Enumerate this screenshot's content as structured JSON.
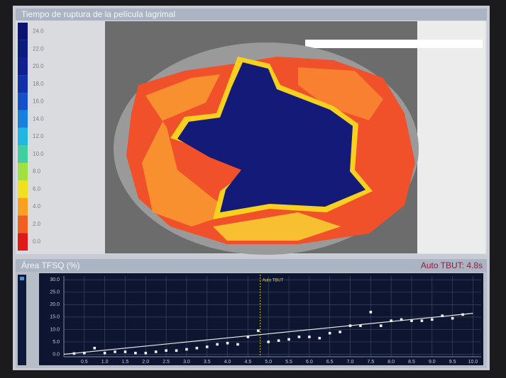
{
  "header": {
    "title": "Tiempo de ruptura de la película lagrimal"
  },
  "legend": [
    {
      "label": "24.0",
      "color": "#0b1470"
    },
    {
      "label": "22.0",
      "color": "#0d1a80"
    },
    {
      "label": "20.0",
      "color": "#102090"
    },
    {
      "label": "18.0",
      "color": "#1230a8"
    },
    {
      "label": "16.0",
      "color": "#1650c8"
    },
    {
      "label": "14.0",
      "color": "#1a80e0"
    },
    {
      "label": "12.0",
      "color": "#20b8e0"
    },
    {
      "label": "10.0",
      "color": "#40d0a0"
    },
    {
      "label": "8.0",
      "color": "#a0e040"
    },
    {
      "label": "6.0",
      "color": "#f0e020"
    },
    {
      "label": "4.0",
      "color": "#f8a020"
    },
    {
      "label": "2.0",
      "color": "#f06020"
    },
    {
      "label": "0.0",
      "color": "#e01818"
    }
  ],
  "chart_data": {
    "type": "scatter",
    "title": "Área TFSQ (%)",
    "subtitle": "Auto TBUT: 4.8s",
    "annotation": {
      "text": "Auto TBUT",
      "x": 4.8
    },
    "xlim": [
      0,
      10.2
    ],
    "ylim": [
      -1,
      31.5
    ],
    "xticks": [
      0.5,
      {
        "value": 1,
        "label": "1.0"
      },
      1.5,
      {
        "value": 2,
        "label": "2.0"
      },
      2.5,
      {
        "value": 3,
        "label": "3.0"
      },
      3.5,
      {
        "value": 4,
        "label": "4.0"
      },
      4.5,
      {
        "value": 5,
        "label": "5.0"
      },
      5.5,
      {
        "value": 6,
        "label": "6.0"
      },
      6.5,
      {
        "value": 7,
        "label": "7.0"
      },
      7.5,
      {
        "value": 8,
        "label": "8.0"
      },
      8.5,
      {
        "value": 9,
        "label": "9.0"
      },
      9.5,
      {
        "value": 10,
        "label": "10.0"
      }
    ],
    "yticks": [
      {
        "value": 0,
        "label": "0.0"
      },
      {
        "value": 5,
        "label": "5.0"
      },
      {
        "value": 10,
        "label": "10.0"
      },
      {
        "value": 15,
        "label": "15.0"
      },
      {
        "value": 20,
        "label": "20.0"
      },
      {
        "value": 25,
        "label": "25.0"
      },
      {
        "value": 30,
        "label": "30.0"
      }
    ],
    "grid": true,
    "x": [
      0.25,
      0.5,
      0.75,
      1,
      1.25,
      1.5,
      1.75,
      2,
      2.25,
      2.5,
      2.75,
      3,
      3.25,
      3.5,
      3.75,
      4,
      4.25,
      4.5,
      4.75,
      5,
      5.25,
      5.5,
      5.75,
      6,
      6.25,
      6.5,
      6.75,
      7,
      7.25,
      7.5,
      7.75,
      8,
      8.25,
      8.5,
      8.75,
      9,
      9.25,
      9.5,
      9.75
    ],
    "series": [
      {
        "color": "#f0f0f0",
        "values": [
          0.3,
          0.5,
          2.5,
          0.5,
          1,
          1,
          0.5,
          0.5,
          1,
          1.5,
          1.5,
          2,
          2.5,
          3,
          4,
          4.5,
          4,
          7,
          9.5,
          5,
          5.5,
          6,
          7,
          7,
          6.5,
          8.5,
          9,
          11.5,
          11.5,
          17,
          11.5,
          13.5,
          14,
          13.5,
          13.5,
          14,
          15.5,
          14.5,
          16
        ]
      }
    ],
    "trend": {
      "color": "#e8e8e8",
      "x": [
        0,
        10
      ],
      "values": [
        0,
        16.5
      ]
    }
  }
}
